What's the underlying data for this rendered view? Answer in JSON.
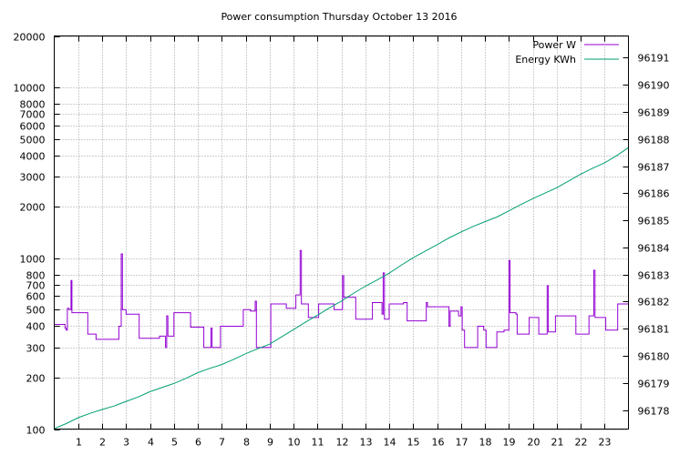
{
  "chart_data": {
    "type": "line",
    "title": "Power consumption Thursday October 13 2016",
    "xlabel": "",
    "ylabel": "",
    "y2label": "",
    "xlim": [
      0,
      24
    ],
    "ylim": [
      100,
      20000
    ],
    "yscale": "log",
    "y2lim": [
      96177.3,
      96191.8
    ],
    "x_ticks": [
      1,
      2,
      3,
      4,
      5,
      6,
      7,
      8,
      9,
      10,
      11,
      12,
      13,
      14,
      15,
      16,
      17,
      18,
      19,
      20,
      21,
      22,
      23
    ],
    "y_ticks": [
      {
        "v": 100,
        "label": "100"
      },
      {
        "v": 200,
        "label": "200"
      },
      {
        "v": 300,
        "label": "300"
      },
      {
        "v": 400,
        "label": "400"
      },
      {
        "v": 500,
        "label": "500"
      },
      {
        "v": 600,
        "label": "600"
      },
      {
        "v": 700,
        "label": "700"
      },
      {
        "v": 800,
        "label": "800"
      },
      {
        "v": 1000,
        "label": "1000"
      },
      {
        "v": 2000,
        "label": "2000"
      },
      {
        "v": 3000,
        "label": "3000"
      },
      {
        "v": 4000,
        "label": "4000"
      },
      {
        "v": 5000,
        "label": "5000"
      },
      {
        "v": 6000,
        "label": "6000"
      },
      {
        "v": 7000,
        "label": "7000"
      },
      {
        "v": 8000,
        "label": "8000"
      },
      {
        "v": 10000,
        "label": "10000"
      },
      {
        "v": 20000,
        "label": "20000"
      }
    ],
    "y2_ticks": [
      96178,
      96179,
      96180,
      96181,
      96182,
      96183,
      96184,
      96185,
      96186,
      96187,
      96188,
      96189,
      96190,
      96191
    ],
    "grid": true,
    "legend_position": "top-right",
    "series": [
      {
        "name": "Power W",
        "axis": "left",
        "color": "#9400d3",
        "style": "steps",
        "points": [
          [
            0.0,
            410
          ],
          [
            0.45,
            390
          ],
          [
            0.5,
            380
          ],
          [
            0.55,
            510
          ],
          [
            0.62,
            500
          ],
          [
            0.7,
            740
          ],
          [
            0.74,
            480
          ],
          [
            1.4,
            360
          ],
          [
            1.75,
            335
          ],
          [
            2.7,
            400
          ],
          [
            2.8,
            1060
          ],
          [
            2.85,
            500
          ],
          [
            3.0,
            470
          ],
          [
            3.55,
            340
          ],
          [
            4.4,
            350
          ],
          [
            4.65,
            300
          ],
          [
            4.7,
            460
          ],
          [
            4.75,
            350
          ],
          [
            5.0,
            480
          ],
          [
            5.7,
            395
          ],
          [
            6.25,
            300
          ],
          [
            6.55,
            390
          ],
          [
            6.6,
            300
          ],
          [
            6.95,
            400
          ],
          [
            7.9,
            500
          ],
          [
            8.2,
            490
          ],
          [
            8.4,
            560
          ],
          [
            8.45,
            300
          ],
          [
            9.05,
            540
          ],
          [
            9.7,
            510
          ],
          [
            10.1,
            610
          ],
          [
            10.28,
            1110
          ],
          [
            10.33,
            540
          ],
          [
            10.62,
            450
          ],
          [
            11.05,
            540
          ],
          [
            11.7,
            500
          ],
          [
            12.05,
            790
          ],
          [
            12.1,
            590
          ],
          [
            12.6,
            440
          ],
          [
            13.3,
            550
          ],
          [
            13.7,
            470
          ],
          [
            13.75,
            820
          ],
          [
            13.8,
            440
          ],
          [
            14.0,
            540
          ],
          [
            14.6,
            550
          ],
          [
            14.75,
            430
          ],
          [
            15.55,
            550
          ],
          [
            15.6,
            520
          ],
          [
            16.5,
            400
          ],
          [
            16.55,
            490
          ],
          [
            16.9,
            460
          ],
          [
            17.0,
            520
          ],
          [
            17.05,
            380
          ],
          [
            17.15,
            300
          ],
          [
            17.7,
            400
          ],
          [
            17.95,
            380
          ],
          [
            18.05,
            300
          ],
          [
            18.5,
            370
          ],
          [
            18.8,
            380
          ],
          [
            19.0,
            970
          ],
          [
            19.05,
            480
          ],
          [
            19.3,
            470
          ],
          [
            19.35,
            360
          ],
          [
            19.85,
            450
          ],
          [
            20.25,
            360
          ],
          [
            20.6,
            690
          ],
          [
            20.65,
            370
          ],
          [
            20.95,
            460
          ],
          [
            21.8,
            360
          ],
          [
            22.35,
            460
          ],
          [
            22.55,
            850
          ],
          [
            22.6,
            450
          ],
          [
            23.05,
            380
          ],
          [
            23.55,
            540
          ],
          [
            23.95,
            540
          ]
        ]
      },
      {
        "name": "Energy KWh",
        "axis": "right",
        "color": "#009e73",
        "style": "line",
        "points": [
          [
            0.0,
            96177.32
          ],
          [
            0.5,
            96177.5
          ],
          [
            1.0,
            96177.72
          ],
          [
            1.5,
            96177.88
          ],
          [
            2.0,
            96178.02
          ],
          [
            2.5,
            96178.15
          ],
          [
            3.0,
            96178.32
          ],
          [
            3.5,
            96178.48
          ],
          [
            4.0,
            96178.68
          ],
          [
            4.5,
            96178.83
          ],
          [
            5.0,
            96178.98
          ],
          [
            5.5,
            96179.17
          ],
          [
            6.0,
            96179.38
          ],
          [
            6.5,
            96179.54
          ],
          [
            7.0,
            96179.68
          ],
          [
            7.5,
            96179.87
          ],
          [
            8.0,
            96180.08
          ],
          [
            8.5,
            96180.26
          ],
          [
            9.0,
            96180.43
          ],
          [
            9.5,
            96180.7
          ],
          [
            10.0,
            96180.97
          ],
          [
            10.5,
            96181.24
          ],
          [
            11.0,
            96181.5
          ],
          [
            11.5,
            96181.77
          ],
          [
            12.0,
            96182.02
          ],
          [
            12.5,
            96182.3
          ],
          [
            13.0,
            96182.57
          ],
          [
            13.5,
            96182.8
          ],
          [
            14.0,
            96183.05
          ],
          [
            14.5,
            96183.34
          ],
          [
            15.0,
            96183.62
          ],
          [
            15.5,
            96183.86
          ],
          [
            16.0,
            96184.1
          ],
          [
            16.5,
            96184.35
          ],
          [
            17.0,
            96184.57
          ],
          [
            17.5,
            96184.77
          ],
          [
            18.0,
            96184.95
          ],
          [
            18.5,
            96185.12
          ],
          [
            19.0,
            96185.35
          ],
          [
            19.5,
            96185.58
          ],
          [
            20.0,
            96185.8
          ],
          [
            20.5,
            96186.0
          ],
          [
            21.0,
            96186.2
          ],
          [
            21.5,
            96186.45
          ],
          [
            22.0,
            96186.7
          ],
          [
            22.5,
            96186.92
          ],
          [
            23.0,
            96187.12
          ],
          [
            23.5,
            96187.38
          ],
          [
            24.0,
            96187.68
          ]
        ]
      }
    ]
  }
}
